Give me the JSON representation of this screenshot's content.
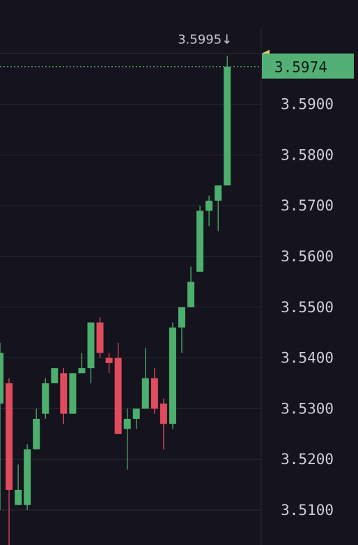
{
  "colors": {
    "background": "#15131d",
    "up": "#4caf6e",
    "down": "#e04b5e",
    "grid": "#2a2833",
    "price_tag": "#52b077",
    "marker": "#e8c86a"
  },
  "chart_data": {
    "type": "candlestick",
    "ylim": [
      3.503,
      3.605
    ],
    "y_ticks": [
      "3.5100",
      "3.5200",
      "3.5300",
      "3.5400",
      "3.5500",
      "3.5600",
      "3.5700",
      "3.5800",
      "3.5900"
    ],
    "y_tick_values": [
      3.51,
      3.52,
      3.53,
      3.54,
      3.55,
      3.56,
      3.57,
      3.58,
      3.59
    ],
    "extra_gridlines": [
      3.6,
      3.5
    ],
    "high_label": "3.5995↓",
    "high_value": 3.5995,
    "current_price": 3.5974,
    "current_price_label": "3.5974",
    "candles": [
      {
        "o": 3.531,
        "h": 3.543,
        "l": 3.51,
        "c": 3.541
      },
      {
        "o": 3.535,
        "h": 3.536,
        "l": 3.503,
        "c": 3.514
      },
      {
        "o": 3.511,
        "h": 3.519,
        "l": 3.511,
        "c": 3.514
      },
      {
        "o": 3.511,
        "h": 3.523,
        "l": 3.51,
        "c": 3.522
      },
      {
        "o": 3.522,
        "h": 3.53,
        "l": 3.522,
        "c": 3.528
      },
      {
        "o": 3.529,
        "h": 3.536,
        "l": 3.528,
        "c": 3.535
      },
      {
        "o": 3.535,
        "h": 3.538,
        "l": 3.535,
        "c": 3.538
      },
      {
        "o": 3.537,
        "h": 3.538,
        "l": 3.527,
        "c": 3.529
      },
      {
        "o": 3.529,
        "h": 3.537,
        "l": 3.529,
        "c": 3.537
      },
      {
        "o": 3.537,
        "h": 3.541,
        "l": 3.537,
        "c": 3.538
      },
      {
        "o": 3.538,
        "h": 3.547,
        "l": 3.535,
        "c": 3.547
      },
      {
        "o": 3.547,
        "h": 3.548,
        "l": 3.54,
        "c": 3.541
      },
      {
        "o": 3.54,
        "h": 3.541,
        "l": 3.537,
        "c": 3.539
      },
      {
        "o": 3.54,
        "h": 3.543,
        "l": 3.525,
        "c": 3.525
      },
      {
        "o": 3.526,
        "h": 3.53,
        "l": 3.518,
        "c": 3.528
      },
      {
        "o": 3.528,
        "h": 3.53,
        "l": 3.526,
        "c": 3.53
      },
      {
        "o": 3.53,
        "h": 3.542,
        "l": 3.53,
        "c": 3.536
      },
      {
        "o": 3.536,
        "h": 3.538,
        "l": 3.529,
        "c": 3.53
      },
      {
        "o": 3.531,
        "h": 3.532,
        "l": 3.522,
        "c": 3.527
      },
      {
        "o": 3.527,
        "h": 3.547,
        "l": 3.526,
        "c": 3.546
      },
      {
        "o": 3.546,
        "h": 3.55,
        "l": 3.541,
        "c": 3.55
      },
      {
        "o": 3.55,
        "h": 3.558,
        "l": 3.55,
        "c": 3.555
      },
      {
        "o": 3.557,
        "h": 3.57,
        "l": 3.557,
        "c": 3.569
      },
      {
        "o": 3.569,
        "h": 3.572,
        "l": 3.566,
        "c": 3.571
      },
      {
        "o": 3.571,
        "h": 3.574,
        "l": 3.565,
        "c": 3.574
      },
      {
        "o": 3.574,
        "h": 3.5995,
        "l": 3.574,
        "c": 3.5974
      }
    ]
  }
}
